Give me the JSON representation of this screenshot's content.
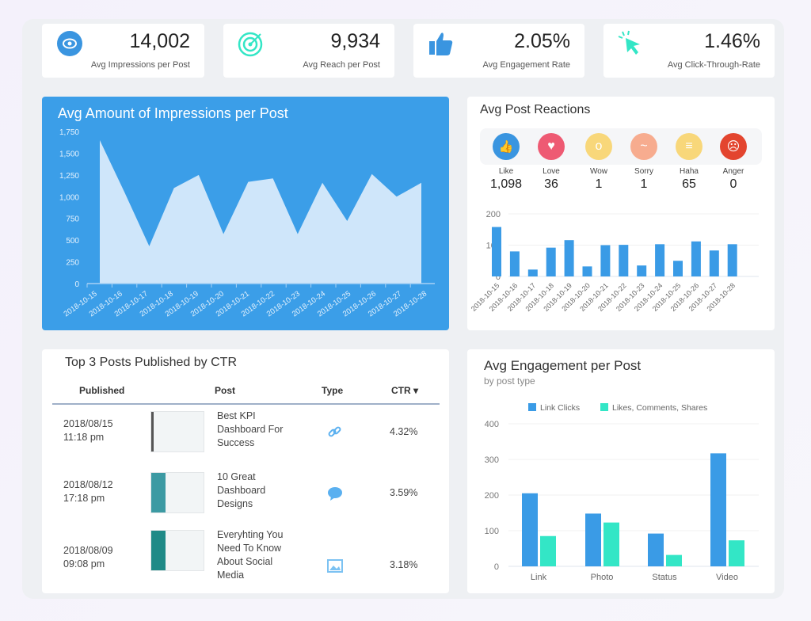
{
  "kpis": [
    {
      "icon": "eye-icon",
      "value": "14,002",
      "label": "Avg Impressions per Post"
    },
    {
      "icon": "target-icon",
      "value": "9,934",
      "label": "Avg Reach per Post"
    },
    {
      "icon": "thumbs-up-icon",
      "value": "2.05%",
      "label": "Avg Engagement Rate"
    },
    {
      "icon": "cursor-click-icon",
      "value": "1.46%",
      "label": "Avg Click-Through-Rate"
    }
  ],
  "colors": {
    "blue": "#3a9be6",
    "teal": "#33e6c6",
    "area_fill": "#cfe6fa",
    "card_blue": "#3b9ee8"
  },
  "reactions": {
    "title": "Avg Post Reactions",
    "items": [
      {
        "label": "Like",
        "value": "1,098",
        "color": "#3a95e0",
        "icon": "like-icon"
      },
      {
        "label": "Love",
        "value": "36",
        "color": "#ee5a73",
        "icon": "love-icon"
      },
      {
        "label": "Wow",
        "value": "1",
        "color": "#f8d77a",
        "icon": "wow-icon"
      },
      {
        "label": "Sorry",
        "value": "1",
        "color": "#f7ac8f",
        "icon": "sorry-icon"
      },
      {
        "label": "Haha",
        "value": "65",
        "color": "#f8d77a",
        "icon": "haha-icon"
      },
      {
        "label": "Anger",
        "value": "0",
        "color": "#e3452f",
        "icon": "anger-icon"
      }
    ]
  },
  "table": {
    "title": "Top 3 Posts Published by CTR",
    "headers": {
      "published": "Published",
      "post": "Post",
      "type": "Type",
      "ctr": "CTR ▾"
    },
    "rows": [
      {
        "date": "2018/08/15",
        "time": "11:18 pm",
        "post": [
          "Best KPI",
          "Dashboard For",
          "Success"
        ],
        "type": "link-icon",
        "ctr": "4.32%"
      },
      {
        "date": "2018/08/12",
        "time": "17:18 pm",
        "post": [
          "10 Great",
          "Dashboard",
          "Designs"
        ],
        "type": "comment-icon",
        "ctr": "3.59%"
      },
      {
        "date": "2018/08/09",
        "time": "09:08 pm",
        "post": [
          "Everyhting You",
          "Need To Know",
          "About Social",
          "Media"
        ],
        "type": "image-icon",
        "ctr": "3.18%"
      }
    ]
  },
  "chart_data": [
    {
      "type": "area",
      "title": "Avg Amount of Impressions per Post",
      "categories": [
        "2018-10-15",
        "2018-10-16",
        "2018-10-17",
        "2018-10-18",
        "2018-10-19",
        "2018-10-20",
        "2018-10-21",
        "2018-10-22",
        "2018-10-23",
        "2018-10-24",
        "2018-10-25",
        "2018-10-26",
        "2018-10-27",
        "2018-10-28"
      ],
      "values": [
        1650,
        1050,
        430,
        1100,
        1250,
        570,
        1170,
        1210,
        570,
        1160,
        720,
        1260,
        1000,
        1160
      ],
      "ylim": [
        0,
        1750
      ],
      "yticks": [
        "0",
        "250",
        "500",
        "750",
        "1,000",
        "1,250",
        "1,500",
        "1,750"
      ],
      "grid": false
    },
    {
      "type": "bar",
      "categories": [
        "2018-10-15",
        "2018-10-16",
        "2018-10-17",
        "2018-10-18",
        "2018-10-19",
        "2018-10-20",
        "2018-10-21",
        "2018-10-22",
        "2018-10-23",
        "2018-10-24",
        "2018-10-25",
        "2018-10-26",
        "2018-10-27",
        "2018-10-28"
      ],
      "values": [
        158,
        80,
        22,
        92,
        116,
        32,
        100,
        101,
        35,
        103,
        50,
        112,
        83,
        103
      ],
      "ylim": [
        0,
        200
      ],
      "yticks": [
        "0",
        "100",
        "200"
      ],
      "grid": true
    },
    {
      "type": "bar",
      "title": "Avg Engagement per Post",
      "subtitle": "by post type",
      "categories": [
        "Link",
        "Photo",
        "Status",
        "Video"
      ],
      "series": [
        {
          "name": "Link Clicks",
          "values": [
            205,
            148,
            92,
            317
          ]
        },
        {
          "name": "Likes, Comments, Shares",
          "values": [
            85,
            123,
            32,
            73
          ]
        }
      ],
      "ylim": [
        0,
        400
      ],
      "yticks": [
        "0",
        "100",
        "200",
        "300",
        "400"
      ],
      "legend": "top",
      "grid": true
    }
  ]
}
